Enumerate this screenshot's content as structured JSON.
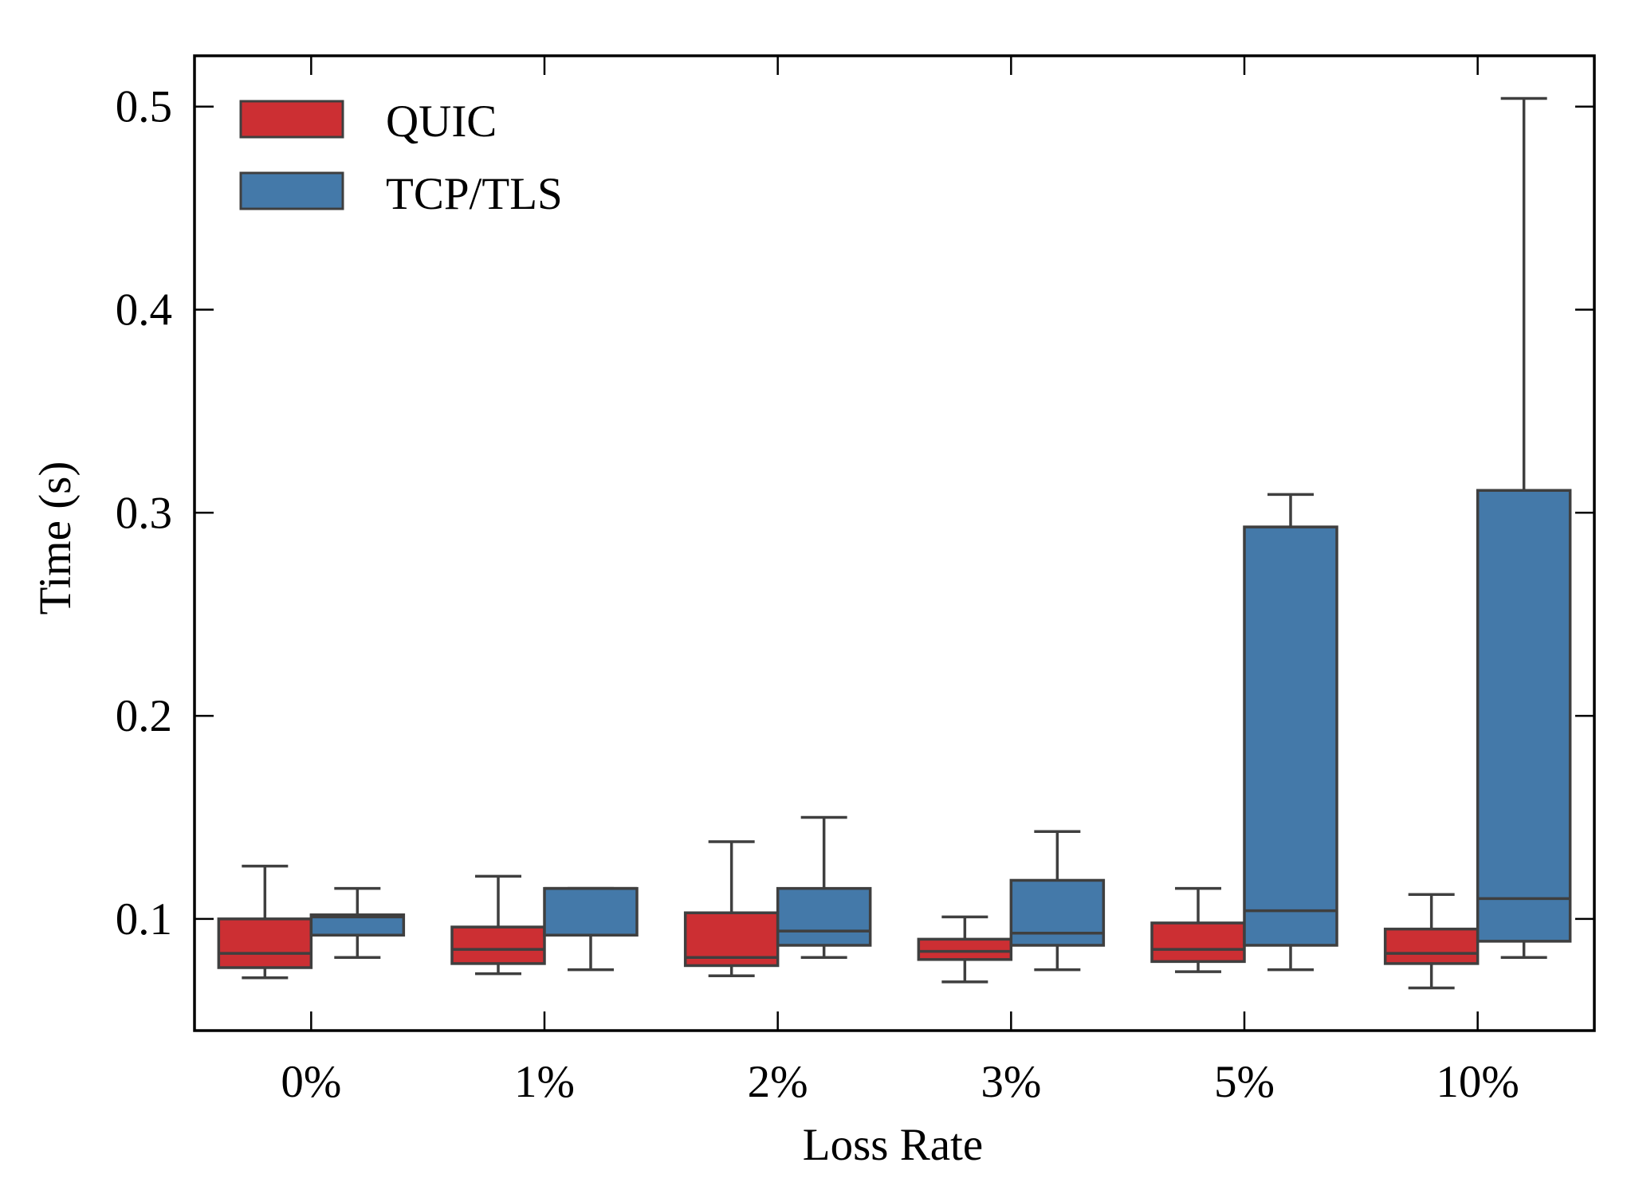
{
  "chart_data": {
    "type": "box",
    "title": "",
    "xlabel": "Loss Rate",
    "ylabel": "Time (s)",
    "categories": [
      "0%",
      "1%",
      "2%",
      "3%",
      "5%",
      "10%"
    ],
    "ylim": [
      0.045,
      0.525
    ],
    "yticks": [
      0.1,
      0.2,
      0.3,
      0.4,
      0.5
    ],
    "ytick_labels": [
      "0.1",
      "0.2",
      "0.3",
      "0.4",
      "0.5"
    ],
    "grid": false,
    "legend_position": "top-left",
    "colors": {
      "box_edge": "#3f3f3f",
      "axis": "#000000"
    },
    "series": [
      {
        "name": "QUIC",
        "color": "#cc2f33",
        "boxes": [
          {
            "whislo": 0.071,
            "q1": 0.076,
            "med": 0.083,
            "q3": 0.1,
            "whishi": 0.126
          },
          {
            "whislo": 0.073,
            "q1": 0.078,
            "med": 0.085,
            "q3": 0.096,
            "whishi": 0.121
          },
          {
            "whislo": 0.072,
            "q1": 0.077,
            "med": 0.081,
            "q3": 0.103,
            "whishi": 0.138
          },
          {
            "whislo": 0.069,
            "q1": 0.08,
            "med": 0.084,
            "q3": 0.09,
            "whishi": 0.101
          },
          {
            "whislo": 0.074,
            "q1": 0.079,
            "med": 0.085,
            "q3": 0.098,
            "whishi": 0.115
          },
          {
            "whislo": 0.066,
            "q1": 0.078,
            "med": 0.083,
            "q3": 0.095,
            "whishi": 0.112
          }
        ]
      },
      {
        "name": "TCP/TLS",
        "color": "#4479a9",
        "boxes": [
          {
            "whislo": 0.081,
            "q1": 0.092,
            "med": 0.101,
            "q3": 0.102,
            "whishi": 0.115
          },
          {
            "whislo": 0.075,
            "q1": 0.092,
            "med": 0.115,
            "q3": 0.115,
            "whishi": 0.115
          },
          {
            "whislo": 0.081,
            "q1": 0.087,
            "med": 0.094,
            "q3": 0.115,
            "whishi": 0.15
          },
          {
            "whislo": 0.075,
            "q1": 0.087,
            "med": 0.093,
            "q3": 0.119,
            "whishi": 0.143
          },
          {
            "whislo": 0.075,
            "q1": 0.087,
            "med": 0.104,
            "q3": 0.293,
            "whishi": 0.309
          },
          {
            "whislo": 0.081,
            "q1": 0.089,
            "med": 0.11,
            "q3": 0.311,
            "whishi": 0.504
          }
        ]
      }
    ]
  }
}
